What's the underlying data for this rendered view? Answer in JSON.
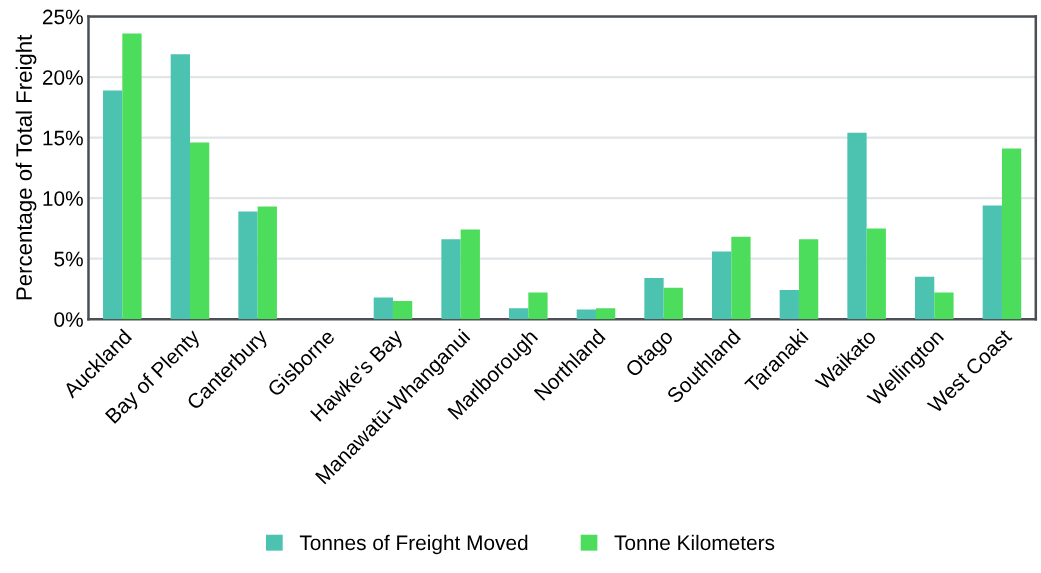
{
  "chart_data": {
    "type": "bar",
    "ylabel": "Percentage of Total Freight",
    "categories": [
      "Auckland",
      "Bay of Plenty",
      "Canterbury",
      "Gisborne",
      "Hawke's Bay",
      "Manawatū-Whanganui",
      "Marlborough",
      "Northland",
      "Otago",
      "Southland",
      "Taranaki",
      "Waikato",
      "Wellington",
      "West Coast"
    ],
    "series": [
      {
        "name": "Tonnes of Freight Moved",
        "color": "#4cc2b0",
        "values": [
          18.9,
          21.9,
          8.9,
          0,
          1.8,
          6.6,
          0.9,
          0.8,
          3.4,
          5.6,
          2.4,
          15.4,
          3.5,
          9.4
        ]
      },
      {
        "name": "Tonne Kilometers",
        "color": "#4cdd5c",
        "values": [
          23.6,
          14.6,
          9.3,
          0,
          1.5,
          7.4,
          2.2,
          0.9,
          2.6,
          6.8,
          6.6,
          7.5,
          2.2,
          14.1
        ]
      }
    ],
    "ylim": [
      0,
      25
    ],
    "yticks": [
      {
        "value": 0,
        "label": "0%"
      },
      {
        "value": 5,
        "label": "5%"
      },
      {
        "value": 10,
        "label": "10%"
      },
      {
        "value": 15,
        "label": "15%"
      },
      {
        "value": 20,
        "label": "20%"
      },
      {
        "value": 25,
        "label": "25%"
      }
    ],
    "grid": "y",
    "legend": "bottom"
  }
}
